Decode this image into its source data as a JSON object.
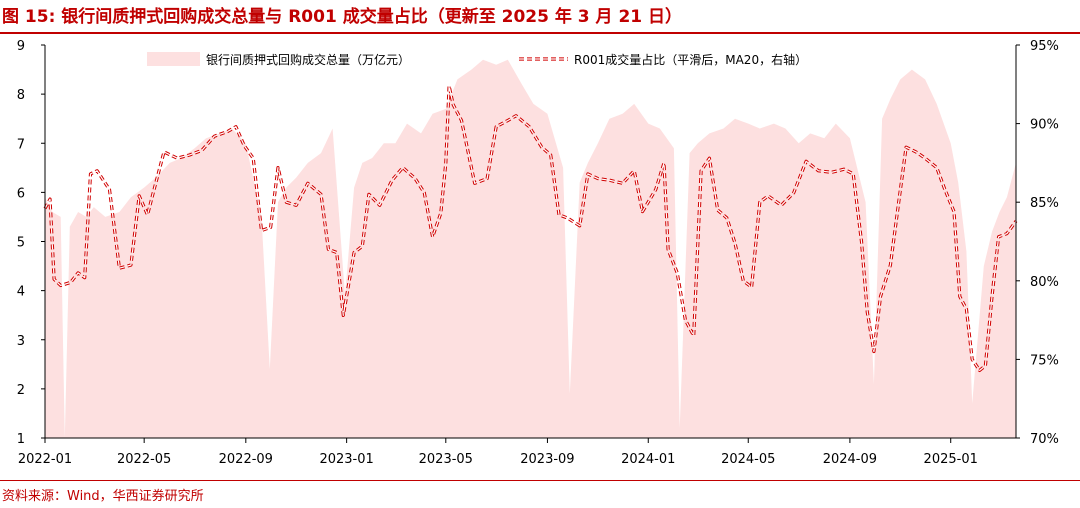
{
  "title": "图 15:  银行间质押式回购成交总量与 R001 成交量占比（更新至 2025 年 3 月 21 日）",
  "source": "资料来源：Wind，华西证券研究所",
  "chart_data": {
    "type": "area+line",
    "title": "",
    "x_tick_labels": [
      "2022-01",
      "2022-05",
      "2022-09",
      "2023-01",
      "2023-05",
      "2023-09",
      "2024-01",
      "2024-05",
      "2024-09",
      "2025-01"
    ],
    "xlim": [
      "2022-01-01",
      "2025-03-21"
    ],
    "y_left": {
      "ylim": [
        1,
        9
      ],
      "ticks": [
        "1",
        "2",
        "3",
        "4",
        "5",
        "6",
        "7",
        "8",
        "9"
      ]
    },
    "y_right": {
      "ylim": [
        70,
        95
      ],
      "ticks": [
        "70%",
        "75%",
        "80%",
        "85%",
        "90%",
        "95%"
      ]
    },
    "grid": false,
    "legend_position": "top-center",
    "series": [
      {
        "name": "银行间质押式回购成交总量（万亿元）",
        "type": "area",
        "axis": "left",
        "color": "#fde0e0",
        "points": [
          [
            "2022-01-01",
            5.9
          ],
          [
            "2022-01-10",
            5.6
          ],
          [
            "2022-01-20",
            5.5
          ],
          [
            "2022-01-25",
            1.0
          ],
          [
            "2022-01-31",
            5.3
          ],
          [
            "2022-02-10",
            5.6
          ],
          [
            "2022-02-20",
            5.5
          ],
          [
            "2022-03-01",
            5.7
          ],
          [
            "2022-03-15",
            5.5
          ],
          [
            "2022-04-01",
            5.6
          ],
          [
            "2022-04-15",
            5.9
          ],
          [
            "2022-05-01",
            6.1
          ],
          [
            "2022-05-15",
            6.3
          ],
          [
            "2022-06-01",
            6.6
          ],
          [
            "2022-06-15",
            6.7
          ],
          [
            "2022-07-01",
            6.9
          ],
          [
            "2022-07-15",
            7.1
          ],
          [
            "2022-08-01",
            7.2
          ],
          [
            "2022-08-15",
            7.3
          ],
          [
            "2022-09-01",
            7.0
          ],
          [
            "2022-09-20",
            5.5
          ],
          [
            "2022-09-30",
            2.4
          ],
          [
            "2022-10-10",
            5.8
          ],
          [
            "2022-10-20",
            6.1
          ],
          [
            "2022-11-01",
            6.3
          ],
          [
            "2022-11-15",
            6.6
          ],
          [
            "2022-12-01",
            6.8
          ],
          [
            "2022-12-15",
            7.3
          ],
          [
            "2022-12-30",
            3.9
          ],
          [
            "2023-01-10",
            6.1
          ],
          [
            "2023-01-20",
            6.6
          ],
          [
            "2023-02-01",
            6.7
          ],
          [
            "2023-02-15",
            7.0
          ],
          [
            "2023-03-01",
            7.0
          ],
          [
            "2023-03-15",
            7.4
          ],
          [
            "2023-04-01",
            7.2
          ],
          [
            "2023-04-15",
            7.6
          ],
          [
            "2023-05-01",
            7.7
          ],
          [
            "2023-05-15",
            8.3
          ],
          [
            "2023-06-01",
            8.5
          ],
          [
            "2023-06-15",
            8.7
          ],
          [
            "2023-07-01",
            8.6
          ],
          [
            "2023-07-15",
            8.7
          ],
          [
            "2023-08-01",
            8.2
          ],
          [
            "2023-08-15",
            7.8
          ],
          [
            "2023-09-01",
            7.6
          ],
          [
            "2023-09-20",
            6.5
          ],
          [
            "2023-09-28",
            1.9
          ],
          [
            "2023-10-10",
            6.2
          ],
          [
            "2023-10-20",
            6.6
          ],
          [
            "2023-11-01",
            7.0
          ],
          [
            "2023-11-15",
            7.5
          ],
          [
            "2023-12-01",
            7.6
          ],
          [
            "2023-12-15",
            7.8
          ],
          [
            "2024-01-01",
            7.4
          ],
          [
            "2024-01-15",
            7.3
          ],
          [
            "2024-02-01",
            6.9
          ],
          [
            "2024-02-08",
            1.2
          ],
          [
            "2024-02-20",
            6.8
          ],
          [
            "2024-03-01",
            7.0
          ],
          [
            "2024-03-15",
            7.2
          ],
          [
            "2024-04-01",
            7.3
          ],
          [
            "2024-04-15",
            7.5
          ],
          [
            "2024-05-01",
            7.4
          ],
          [
            "2024-05-15",
            7.3
          ],
          [
            "2024-06-01",
            7.4
          ],
          [
            "2024-06-15",
            7.3
          ],
          [
            "2024-07-01",
            7.0
          ],
          [
            "2024-07-15",
            7.2
          ],
          [
            "2024-08-01",
            7.1
          ],
          [
            "2024-08-15",
            7.4
          ],
          [
            "2024-09-01",
            7.1
          ],
          [
            "2024-09-20",
            5.8
          ],
          [
            "2024-09-30",
            2.1
          ],
          [
            "2024-10-10",
            7.5
          ],
          [
            "2024-10-20",
            7.9
          ],
          [
            "2024-11-01",
            8.3
          ],
          [
            "2024-11-15",
            8.5
          ],
          [
            "2024-12-01",
            8.3
          ],
          [
            "2024-12-15",
            7.8
          ],
          [
            "2025-01-01",
            7.0
          ],
          [
            "2025-01-10",
            6.2
          ],
          [
            "2025-01-20",
            4.8
          ],
          [
            "2025-01-27",
            1.7
          ],
          [
            "2025-02-10",
            4.5
          ],
          [
            "2025-02-20",
            5.2
          ],
          [
            "2025-03-01",
            5.6
          ],
          [
            "2025-03-10",
            5.9
          ],
          [
            "2025-03-21",
            6.6
          ]
        ]
      },
      {
        "name": "R001成交量占比（平滑后，MA20，右轴）",
        "type": "line",
        "axis": "right",
        "style": "dashed-double",
        "color": "#d00000",
        "points": [
          [
            "2022-01-01",
            84.6
          ],
          [
            "2022-01-07",
            85.2
          ],
          [
            "2022-01-12",
            80.1
          ],
          [
            "2022-01-20",
            79.7
          ],
          [
            "2022-02-01",
            79.9
          ],
          [
            "2022-02-10",
            80.5
          ],
          [
            "2022-02-18",
            80.2
          ],
          [
            "2022-02-25",
            86.8
          ],
          [
            "2022-03-05",
            87.0
          ],
          [
            "2022-03-20",
            85.8
          ],
          [
            "2022-04-01",
            80.8
          ],
          [
            "2022-04-15",
            81.0
          ],
          [
            "2022-04-25",
            85.4
          ],
          [
            "2022-05-05",
            84.2
          ],
          [
            "2022-05-15",
            86.2
          ],
          [
            "2022-05-25",
            88.2
          ],
          [
            "2022-06-10",
            87.8
          ],
          [
            "2022-06-25",
            88.0
          ],
          [
            "2022-07-10",
            88.3
          ],
          [
            "2022-07-25",
            89.2
          ],
          [
            "2022-08-10",
            89.5
          ],
          [
            "2022-08-20",
            89.8
          ],
          [
            "2022-08-30",
            88.6
          ],
          [
            "2022-09-10",
            87.8
          ],
          [
            "2022-09-20",
            83.2
          ],
          [
            "2022-10-01",
            83.4
          ],
          [
            "2022-10-10",
            87.2
          ],
          [
            "2022-10-20",
            85.0
          ],
          [
            "2022-11-01",
            84.8
          ],
          [
            "2022-11-15",
            86.2
          ],
          [
            "2022-12-01",
            85.5
          ],
          [
            "2022-12-10",
            82.0
          ],
          [
            "2022-12-20",
            81.8
          ],
          [
            "2022-12-28",
            77.8
          ],
          [
            "2023-01-10",
            81.8
          ],
          [
            "2023-01-20",
            82.2
          ],
          [
            "2023-01-28",
            85.5
          ],
          [
            "2023-02-10",
            84.8
          ],
          [
            "2023-02-25",
            86.4
          ],
          [
            "2023-03-10",
            87.2
          ],
          [
            "2023-03-25",
            86.5
          ],
          [
            "2023-04-05",
            85.6
          ],
          [
            "2023-04-15",
            82.8
          ],
          [
            "2023-04-25",
            84.3
          ],
          [
            "2023-05-01",
            87.5
          ],
          [
            "2023-05-05",
            92.4
          ],
          [
            "2023-05-10",
            91.2
          ],
          [
            "2023-05-20",
            90.2
          ],
          [
            "2023-06-05",
            86.2
          ],
          [
            "2023-06-20",
            86.5
          ],
          [
            "2023-07-01",
            89.8
          ],
          [
            "2023-07-15",
            90.2
          ],
          [
            "2023-07-25",
            90.5
          ],
          [
            "2023-08-10",
            89.8
          ],
          [
            "2023-08-25",
            88.5
          ],
          [
            "2023-09-05",
            88.0
          ],
          [
            "2023-09-15",
            84.2
          ],
          [
            "2023-09-25",
            84.0
          ],
          [
            "2023-10-10",
            83.5
          ],
          [
            "2023-10-20",
            86.8
          ],
          [
            "2023-11-01",
            86.5
          ],
          [
            "2023-11-15",
            86.4
          ],
          [
            "2023-12-01",
            86.2
          ],
          [
            "2023-12-15",
            87.0
          ],
          [
            "2023-12-25",
            84.4
          ],
          [
            "2024-01-10",
            85.8
          ],
          [
            "2024-01-20",
            87.5
          ],
          [
            "2024-01-25",
            82.0
          ],
          [
            "2024-02-05",
            80.5
          ],
          [
            "2024-02-15",
            77.5
          ],
          [
            "2024-02-25",
            76.5
          ],
          [
            "2024-03-05",
            87.0
          ],
          [
            "2024-03-15",
            87.8
          ],
          [
            "2024-03-25",
            84.5
          ],
          [
            "2024-04-05",
            84.0
          ],
          [
            "2024-04-15",
            82.4
          ],
          [
            "2024-04-25",
            80.0
          ],
          [
            "2024-05-05",
            79.6
          ],
          [
            "2024-05-15",
            85.0
          ],
          [
            "2024-05-25",
            85.4
          ],
          [
            "2024-06-10",
            84.8
          ],
          [
            "2024-06-25",
            85.6
          ],
          [
            "2024-07-10",
            87.6
          ],
          [
            "2024-07-25",
            87.0
          ],
          [
            "2024-08-10",
            86.9
          ],
          [
            "2024-08-25",
            87.1
          ],
          [
            "2024-09-05",
            86.8
          ],
          [
            "2024-09-15",
            82.5
          ],
          [
            "2024-09-22",
            78.0
          ],
          [
            "2024-09-30",
            75.5
          ],
          [
            "2024-10-08",
            79.0
          ],
          [
            "2024-10-20",
            81.0
          ],
          [
            "2024-10-30",
            85.0
          ],
          [
            "2024-11-08",
            88.5
          ],
          [
            "2024-11-20",
            88.2
          ],
          [
            "2024-12-01",
            87.8
          ],
          [
            "2024-12-15",
            87.2
          ],
          [
            "2024-12-25",
            85.8
          ],
          [
            "2025-01-05",
            84.4
          ],
          [
            "2025-01-12",
            79.0
          ],
          [
            "2025-01-20",
            78.2
          ],
          [
            "2025-01-27",
            75.0
          ],
          [
            "2025-02-05",
            74.3
          ],
          [
            "2025-02-12",
            74.6
          ],
          [
            "2025-02-20",
            79.0
          ],
          [
            "2025-02-28",
            82.8
          ],
          [
            "2025-03-10",
            83.0
          ],
          [
            "2025-03-21",
            83.8
          ]
        ]
      }
    ]
  }
}
